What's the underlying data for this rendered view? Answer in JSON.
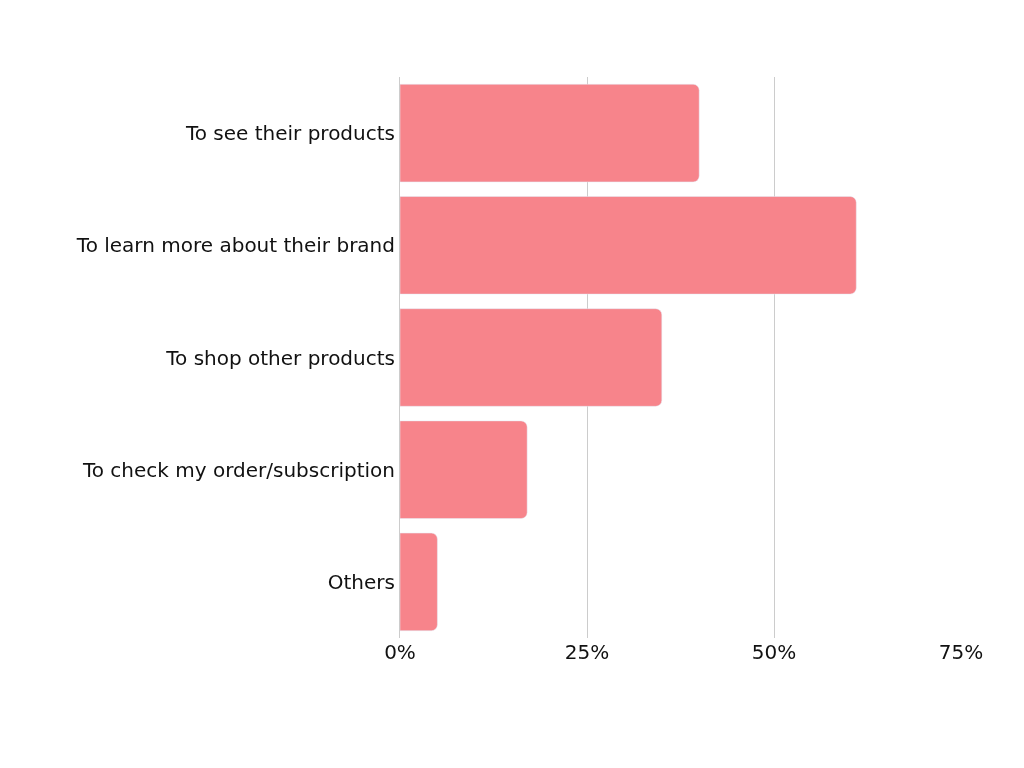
{
  "chart_data": {
    "type": "bar",
    "orientation": "horizontal",
    "categories": [
      "To see their products",
      "To learn more about their brand",
      "To shop other products",
      "To check my order/subscription",
      "Others"
    ],
    "values": [
      40,
      61,
      35,
      17,
      5
    ],
    "color": "#f7848b",
    "xlim": [
      0,
      75
    ],
    "xticks": [
      {
        "value": 0,
        "label": "0%"
      },
      {
        "value": 25,
        "label": "25%"
      },
      {
        "value": 50,
        "label": "50%"
      },
      {
        "value": 75,
        "label": "75%"
      }
    ],
    "grid": "x"
  }
}
